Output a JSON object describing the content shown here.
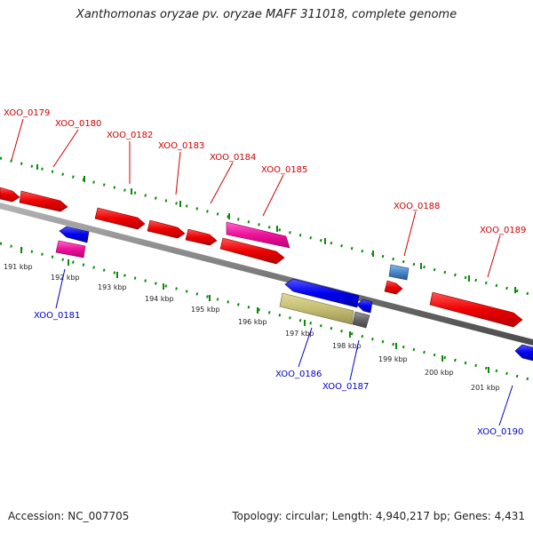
{
  "title": "Xanthomonas oryzae pv. oryzae MAFF 311018, complete genome",
  "footer": {
    "accession": "Accession: NC_007705",
    "stats": "Topology: circular; Length: 4,940,217 bp; Genes: 4,431"
  },
  "colors": {
    "forward_label": "#cc0000",
    "reverse_label": "#0000cc",
    "backbone": "#808080",
    "dots": "#0a8a0a"
  },
  "scale_ticks": [
    "191 kbp",
    "192 kbp",
    "193 kbp",
    "194 kbp",
    "195 kbp",
    "196 kbp",
    "197 kbp",
    "198 kbp",
    "199 kbp",
    "200 kbp",
    "201 kbp"
  ],
  "gene_labels": [
    {
      "id": "XOO_0179",
      "strand": "forward"
    },
    {
      "id": "XOO_0180",
      "strand": "forward"
    },
    {
      "id": "XOO_0181",
      "strand": "reverse"
    },
    {
      "id": "XOO_0182",
      "strand": "forward"
    },
    {
      "id": "XOO_0183",
      "strand": "forward"
    },
    {
      "id": "XOO_0184",
      "strand": "forward"
    },
    {
      "id": "XOO_0185",
      "strand": "forward"
    },
    {
      "id": "XOO_0186",
      "strand": "reverse"
    },
    {
      "id": "XOO_0187",
      "strand": "reverse"
    },
    {
      "id": "XOO_0188",
      "strand": "forward"
    },
    {
      "id": "XOO_0189",
      "strand": "forward"
    },
    {
      "id": "XOO_0190",
      "strand": "reverse"
    }
  ]
}
